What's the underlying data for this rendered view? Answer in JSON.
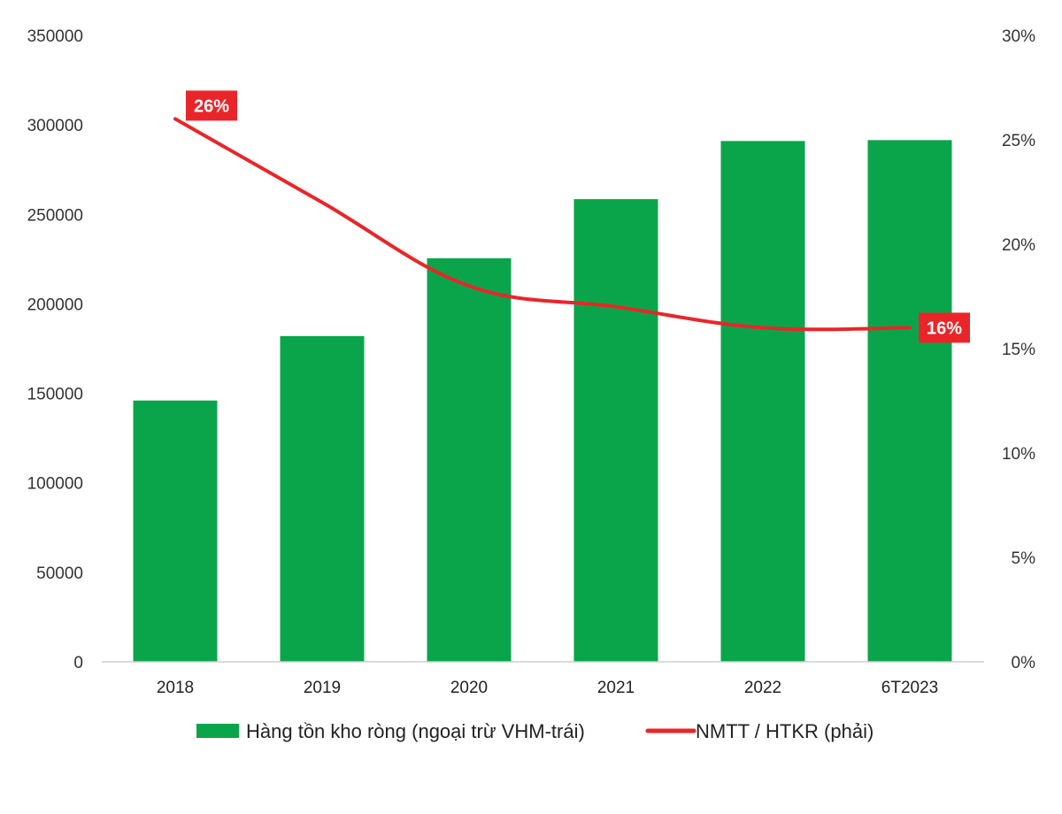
{
  "chart_data": {
    "type": "bar",
    "categories": [
      "2018",
      "2019",
      "2020",
      "2021",
      "2022",
      "6T2023"
    ],
    "series": [
      {
        "name": "Hàng tồn kho ròng (ngoại trừ VHM-trái)",
        "type": "bar",
        "axis": "left",
        "color": "#0aa54b",
        "values": [
          146000,
          182000,
          225500,
          258500,
          291000,
          291500
        ]
      },
      {
        "name": "NMTT / HTKR (phải)",
        "type": "line",
        "axis": "right",
        "color": "#e8262a",
        "values": [
          26,
          22,
          18,
          17,
          16,
          16
        ]
      }
    ],
    "y_left": {
      "lim": [
        0,
        350000
      ],
      "ticks": [
        "0",
        "50000",
        "100000",
        "150000",
        "200000",
        "250000",
        "300000",
        "350000"
      ]
    },
    "y_right": {
      "lim": [
        0,
        30
      ],
      "unit": "%",
      "ticks": [
        "0%",
        "5%",
        "10%",
        "15%",
        "20%",
        "25%",
        "30%"
      ]
    },
    "data_labels": [
      {
        "series": 1,
        "index": 0,
        "text": "26%"
      },
      {
        "series": 1,
        "index": 5,
        "text": "16%"
      }
    ],
    "grid": false,
    "legend_position": "bottom"
  }
}
